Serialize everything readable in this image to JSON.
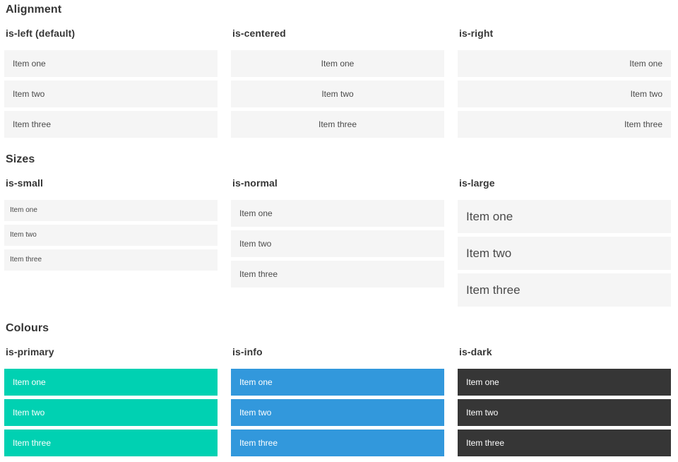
{
  "colors": {
    "primary": "#00d1b2",
    "info": "#3298dc",
    "dark": "#363636",
    "item_background": "#f5f5f5",
    "item_text": "#4a4a4a",
    "heading_text": "#363636",
    "colored_item_text": "#ffffff"
  },
  "sections": [
    {
      "title": "Alignment",
      "columns": [
        {
          "heading": "is-left (default)",
          "variant": "left",
          "items": [
            "Item one",
            "Item two",
            "Item three"
          ]
        },
        {
          "heading": "is-centered",
          "variant": "centered",
          "items": [
            "Item one",
            "Item two",
            "Item three"
          ]
        },
        {
          "heading": "is-right",
          "variant": "right",
          "items": [
            "Item one",
            "Item two",
            "Item three"
          ]
        }
      ]
    },
    {
      "title": "Sizes",
      "columns": [
        {
          "heading": "is-small",
          "variant": "small",
          "items": [
            "Item one",
            "Item two",
            "Item three"
          ]
        },
        {
          "heading": "is-normal",
          "variant": "normal",
          "items": [
            "Item one",
            "Item two",
            "Item three"
          ]
        },
        {
          "heading": "is-large",
          "variant": "large",
          "items": [
            "Item one",
            "Item two",
            "Item three"
          ]
        }
      ]
    },
    {
      "title": "Colours",
      "columns": [
        {
          "heading": "is-primary",
          "variant": "primary",
          "items": [
            "Item one",
            "Item two",
            "Item three"
          ]
        },
        {
          "heading": "is-info",
          "variant": "info",
          "items": [
            "Item one",
            "Item two",
            "Item three"
          ]
        },
        {
          "heading": "is-dark",
          "variant": "dark",
          "items": [
            "Item one",
            "Item two",
            "Item three"
          ]
        }
      ]
    }
  ]
}
